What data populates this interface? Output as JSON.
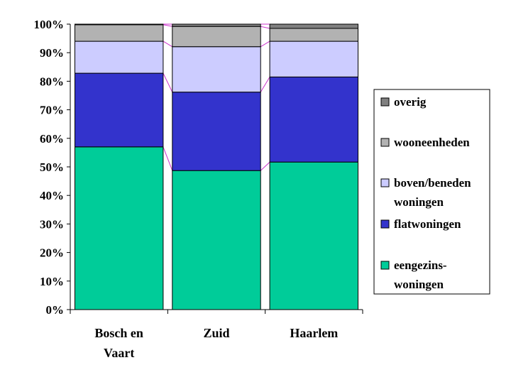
{
  "chart_data": {
    "type": "bar",
    "stacked": true,
    "percent": true,
    "title": "",
    "xlabel": "",
    "ylabel": "",
    "ylim": [
      0,
      100
    ],
    "yticks": [
      "0%",
      "10%",
      "20%",
      "30%",
      "40%",
      "50%",
      "60%",
      "70%",
      "80%",
      "90%",
      "100%"
    ],
    "grid": false,
    "legend_position": "right",
    "categories": [
      {
        "lines": [
          "Bosch en",
          "Vaart"
        ]
      },
      {
        "lines": [
          "Zuid"
        ]
      },
      {
        "lines": [
          "Haarlem"
        ]
      }
    ],
    "series": [
      {
        "name": "eengezins-woningen",
        "legend_lines": [
          "eengezins-",
          "woningen"
        ],
        "color": "#00cc99",
        "values": [
          57,
          48.7,
          51.7
        ]
      },
      {
        "name": "flatwoningen",
        "legend_lines": [
          "flatwoningen"
        ],
        "color": "#3333cc",
        "values": [
          25.8,
          27.5,
          29.8
        ]
      },
      {
        "name": "boven/beneden woningen",
        "legend_lines": [
          "boven/beneden",
          "woningen"
        ],
        "color": "#ccccff",
        "values": [
          11.2,
          15.9,
          12.5
        ]
      },
      {
        "name": "wooneenheden",
        "legend_lines": [
          "wooneenheden"
        ],
        "color": "#b2b2b2",
        "values": [
          5.8,
          7.1,
          4.5
        ]
      },
      {
        "name": "overig",
        "legend_lines": [
          "overig"
        ],
        "color": "#808080",
        "values": [
          0.2,
          0.8,
          1.5
        ]
      }
    ],
    "series_line_color": "#cc33cc"
  }
}
